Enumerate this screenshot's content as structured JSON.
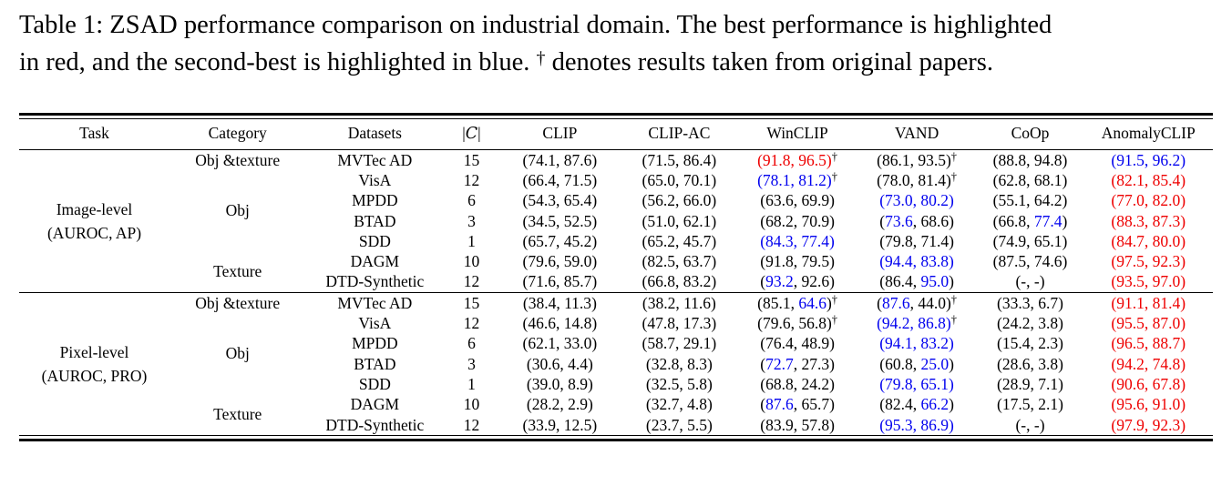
{
  "caption": {
    "line1": "Table 1: ZSAD performance comparison on industrial domain. The best performance is highlighted",
    "line2_pre": "in red, and the second-best is highlighted in blue. ",
    "dagger": "†",
    "line2_post": " denotes results taken from original papers."
  },
  "colors": {
    "best": "#ee0000",
    "second_best": "#0000ee",
    "text": "#000000"
  },
  "legend": {
    "best_meaning": "best performance (red)",
    "second_meaning": "second-best performance (blue)",
    "dagger_meaning": "results taken from original papers"
  },
  "table": {
    "headers": [
      "Task",
      "Category",
      "Datasets",
      "|C|",
      "CLIP",
      "CLIP-AC",
      "WinCLIP",
      "VAND",
      "CoOp",
      "AnomalyCLIP"
    ],
    "sections": [
      {
        "task_line1": "Image-level",
        "task_line2": "(AUROC, AP)",
        "category_groups": [
          {
            "label": "Obj &texture",
            "start": 0,
            "span": 1
          },
          {
            "label": "Obj",
            "start": 1,
            "span": 4
          },
          {
            "label": "Texture",
            "start": 5,
            "span": 2
          }
        ],
        "rows": [
          {
            "dataset": "MVTec AD",
            "classes": "15",
            "cells": [
              [
                "74.1",
                "87.6",
                "k",
                "k",
                false
              ],
              [
                "71.5",
                "86.4",
                "k",
                "k",
                false
              ],
              [
                "91.8",
                "96.5",
                "r",
                "r",
                true
              ],
              [
                "86.1",
                "93.5",
                "k",
                "k",
                true
              ],
              [
                "88.8",
                "94.8",
                "k",
                "k",
                false
              ],
              [
                "91.5",
                "96.2",
                "b",
                "b",
                false
              ]
            ]
          },
          {
            "dataset": "VisA",
            "classes": "12",
            "cells": [
              [
                "66.4",
                "71.5",
                "k",
                "k",
                false
              ],
              [
                "65.0",
                "70.1",
                "k",
                "k",
                false
              ],
              [
                "78.1",
                "81.2",
                "b",
                "b",
                true
              ],
              [
                "78.0",
                "81.4",
                "k",
                "k",
                true
              ],
              [
                "62.8",
                "68.1",
                "k",
                "k",
                false
              ],
              [
                "82.1",
                "85.4",
                "r",
                "r",
                false
              ]
            ]
          },
          {
            "dataset": "MPDD",
            "classes": "6",
            "cells": [
              [
                "54.3",
                "65.4",
                "k",
                "k",
                false
              ],
              [
                "56.2",
                "66.0",
                "k",
                "k",
                false
              ],
              [
                "63.6",
                "69.9",
                "k",
                "k",
                false
              ],
              [
                "73.0",
                "80.2",
                "b",
                "b",
                false
              ],
              [
                "55.1",
                "64.2",
                "k",
                "k",
                false
              ],
              [
                "77.0",
                "82.0",
                "r",
                "r",
                false
              ]
            ]
          },
          {
            "dataset": "BTAD",
            "classes": "3",
            "cells": [
              [
                "34.5",
                "52.5",
                "k",
                "k",
                false
              ],
              [
                "51.0",
                "62.1",
                "k",
                "k",
                false
              ],
              [
                "68.2",
                "70.9",
                "k",
                "k",
                false
              ],
              [
                "73.6",
                "68.6",
                "b",
                "k",
                false
              ],
              [
                "66.8",
                "77.4",
                "k",
                "b",
                false
              ],
              [
                "88.3",
                "87.3",
                "r",
                "r",
                false
              ]
            ]
          },
          {
            "dataset": "SDD",
            "classes": "1",
            "cells": [
              [
                "65.7",
                "45.2",
                "k",
                "k",
                false
              ],
              [
                "65.2",
                "45.7",
                "k",
                "k",
                false
              ],
              [
                "84.3",
                "77.4",
                "b",
                "b",
                false
              ],
              [
                "79.8",
                "71.4",
                "k",
                "k",
                false
              ],
              [
                "74.9",
                "65.1",
                "k",
                "k",
                false
              ],
              [
                "84.7",
                "80.0",
                "r",
                "r",
                false
              ]
            ]
          },
          {
            "dataset": "DAGM",
            "classes": "10",
            "cells": [
              [
                "79.6",
                "59.0",
                "k",
                "k",
                false
              ],
              [
                "82.5",
                "63.7",
                "k",
                "k",
                false
              ],
              [
                "91.8",
                "79.5",
                "k",
                "k",
                false
              ],
              [
                "94.4",
                "83.8",
                "b",
                "b",
                false
              ],
              [
                "87.5",
                "74.6",
                "k",
                "k",
                false
              ],
              [
                "97.5",
                "92.3",
                "r",
                "r",
                false
              ]
            ]
          },
          {
            "dataset": "DTD-Synthetic",
            "classes": "12",
            "cells": [
              [
                "71.6",
                "85.7",
                "k",
                "k",
                false
              ],
              [
                "66.8",
                "83.2",
                "k",
                "k",
                false
              ],
              [
                "93.2",
                "92.6",
                "b",
                "k",
                false
              ],
              [
                "86.4",
                "95.0",
                "k",
                "b",
                false
              ],
              [
                "-",
                "-",
                "k",
                "k",
                false
              ],
              [
                "93.5",
                "97.0",
                "r",
                "r",
                false
              ]
            ]
          }
        ]
      },
      {
        "task_line1": "Pixel-level",
        "task_line2": "(AUROC, PRO)",
        "category_groups": [
          {
            "label": "Obj &texture",
            "start": 0,
            "span": 1
          },
          {
            "label": "Obj",
            "start": 1,
            "span": 4
          },
          {
            "label": "Texture",
            "start": 5,
            "span": 2
          }
        ],
        "rows": [
          {
            "dataset": "MVTec AD",
            "classes": "15",
            "cells": [
              [
                "38.4",
                "11.3",
                "k",
                "k",
                false
              ],
              [
                "38.2",
                "11.6",
                "k",
                "k",
                false
              ],
              [
                "85.1",
                "64.6",
                "k",
                "b",
                true
              ],
              [
                "87.6",
                "44.0",
                "b",
                "k",
                true
              ],
              [
                "33.3",
                "6.7",
                "k",
                "k",
                false
              ],
              [
                "91.1",
                "81.4",
                "r",
                "r",
                false
              ]
            ]
          },
          {
            "dataset": "VisA",
            "classes": "12",
            "cells": [
              [
                "46.6",
                "14.8",
                "k",
                "k",
                false
              ],
              [
                "47.8",
                "17.3",
                "k",
                "k",
                false
              ],
              [
                "79.6",
                "56.8",
                "k",
                "k",
                true
              ],
              [
                "94.2",
                "86.8",
                "b",
                "b",
                true
              ],
              [
                "24.2",
                "3.8",
                "k",
                "k",
                false
              ],
              [
                "95.5",
                "87.0",
                "r",
                "r",
                false
              ]
            ]
          },
          {
            "dataset": "MPDD",
            "classes": "6",
            "cells": [
              [
                "62.1",
                "33.0",
                "k",
                "k",
                false
              ],
              [
                "58.7",
                "29.1",
                "k",
                "k",
                false
              ],
              [
                "76.4",
                "48.9",
                "k",
                "k",
                false
              ],
              [
                "94.1",
                "83.2",
                "b",
                "b",
                false
              ],
              [
                "15.4",
                "2.3",
                "k",
                "k",
                false
              ],
              [
                "96.5",
                "88.7",
                "r",
                "r",
                false
              ]
            ]
          },
          {
            "dataset": "BTAD",
            "classes": "3",
            "cells": [
              [
                "30.6",
                "4.4",
                "k",
                "k",
                false
              ],
              [
                "32.8",
                "8.3",
                "k",
                "k",
                false
              ],
              [
                "72.7",
                "27.3",
                "b",
                "k",
                false
              ],
              [
                "60.8",
                "25.0",
                "k",
                "b",
                false
              ],
              [
                "28.6",
                "3.8",
                "k",
                "k",
                false
              ],
              [
                "94.2",
                "74.8",
                "r",
                "r",
                false
              ]
            ]
          },
          {
            "dataset": "SDD",
            "classes": "1",
            "cells": [
              [
                "39.0",
                "8.9",
                "k",
                "k",
                false
              ],
              [
                "32.5",
                "5.8",
                "k",
                "k",
                false
              ],
              [
                "68.8",
                "24.2",
                "k",
                "k",
                false
              ],
              [
                "79.8",
                "65.1",
                "b",
                "b",
                false
              ],
              [
                "28.9",
                "7.1",
                "k",
                "k",
                false
              ],
              [
                "90.6",
                "67.8",
                "r",
                "r",
                false
              ]
            ]
          },
          {
            "dataset": "DAGM",
            "classes": "10",
            "cells": [
              [
                "28.2",
                "2.9",
                "k",
                "k",
                false
              ],
              [
                "32.7",
                "4.8",
                "k",
                "k",
                false
              ],
              [
                "87.6",
                "65.7",
                "b",
                "k",
                false
              ],
              [
                "82.4",
                "66.2",
                "k",
                "b",
                false
              ],
              [
                "17.5",
                "2.1",
                "k",
                "k",
                false
              ],
              [
                "95.6",
                "91.0",
                "r",
                "r",
                false
              ]
            ]
          },
          {
            "dataset": "DTD-Synthetic",
            "classes": "12",
            "cells": [
              [
                "33.9",
                "12.5",
                "k",
                "k",
                false
              ],
              [
                "23.7",
                "5.5",
                "k",
                "k",
                false
              ],
              [
                "83.9",
                "57.8",
                "k",
                "k",
                false
              ],
              [
                "95.3",
                "86.9",
                "b",
                "b",
                false
              ],
              [
                "-",
                "-",
                "k",
                "k",
                false
              ],
              [
                "97.9",
                "92.3",
                "r",
                "r",
                false
              ]
            ]
          }
        ]
      }
    ]
  }
}
